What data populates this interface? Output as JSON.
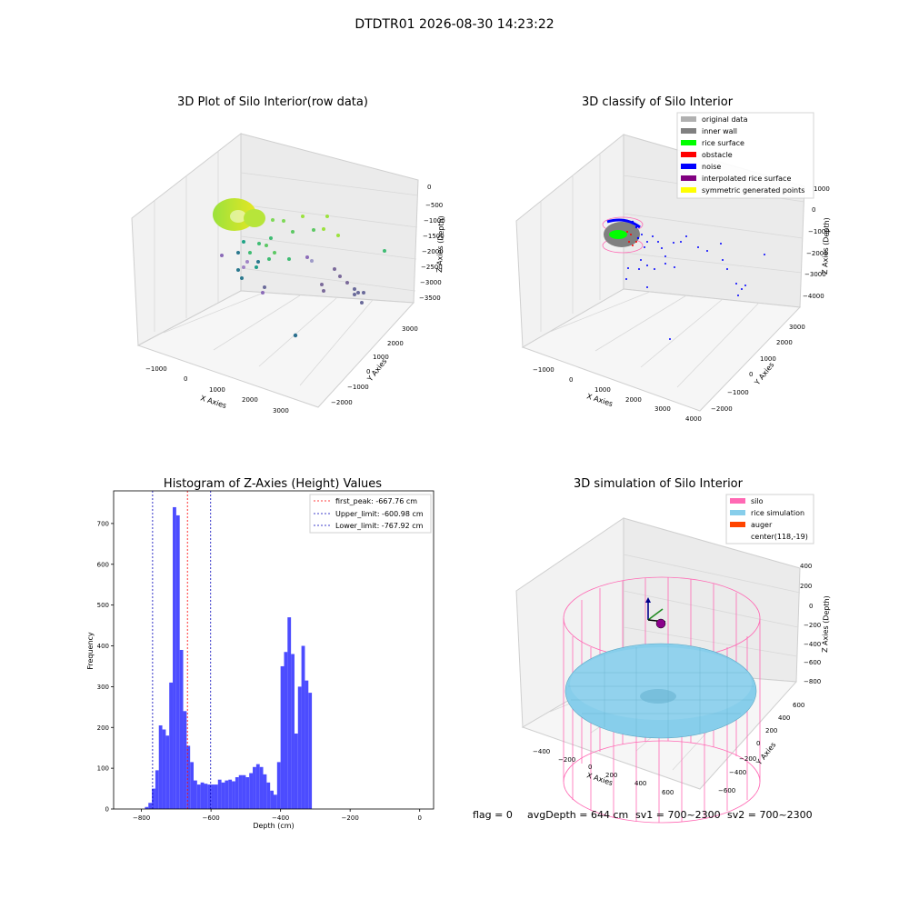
{
  "suptitle": "DTDTR01 2026-08-30 14:23:22",
  "footer": {
    "flag": "flag = 0",
    "avg": "avgDepth = 644 cm",
    "sv1": "sv1 = 700~2300",
    "sv2": "sv2 = 700~2300"
  },
  "colors": {
    "hist_bar": "#4c4cff",
    "peak_line": "#ff0000",
    "limit_line": "#0000bb",
    "silo": "#ff69b4",
    "rice_sim": "#87ceeb",
    "auger": "#ff4500",
    "wall": "#808080",
    "rice": "#00ff00",
    "obstacle": "#ff0000",
    "noise": "#0000ff",
    "interp": "#800080",
    "sym": "#ffff00",
    "orig": "#b0b0b0"
  },
  "chart_data": [
    {
      "type": "scatter",
      "title": "3D Plot of Silo Interior(row data)",
      "xlabel": "X Axies",
      "ylabel": "Y Axies",
      "zlabel": "Z Axies (Depth)",
      "xticks": [
        "−1000",
        "0",
        "1000",
        "2000",
        "3000"
      ],
      "yticks": [
        "−2000",
        "−1000",
        "0",
        "1000",
        "2000",
        "3000"
      ],
      "zticks": [
        "0",
        "−500",
        "−1000",
        "−1500",
        "−2000",
        "−2500",
        "−3000",
        "−3500"
      ]
    },
    {
      "type": "scatter",
      "title": "3D classify of Silo Interior",
      "xlabel": "X Axies",
      "ylabel": "Y Axies",
      "zlabel": "Z Axies (Depth)",
      "xticks": [
        "−1000",
        "0",
        "1000",
        "2000",
        "3000",
        "4000"
      ],
      "yticks": [
        "−2000",
        "−1000",
        "0",
        "1000",
        "2000",
        "3000"
      ],
      "zticks": [
        "1000",
        "0",
        "−1000",
        "−2000",
        "−3000",
        "−4000"
      ],
      "legend": [
        {
          "label": "original data",
          "color": "#b0b0b0"
        },
        {
          "label": "inner wall",
          "color": "#808080"
        },
        {
          "label": "rice surface",
          "color": "#00ff00"
        },
        {
          "label": "obstacle",
          "color": "#ff0000"
        },
        {
          "label": "noise",
          "color": "#0000ff"
        },
        {
          "label": "interpolated rice surface",
          "color": "#800080"
        },
        {
          "label": "symmetric generated points",
          "color": "#ffff00"
        }
      ]
    },
    {
      "type": "bar",
      "title": "Histogram of Z-Axies (Height) Values",
      "xlabel": "Depth (cm)",
      "ylabel": "Frequency",
      "xlim": [
        -880,
        40
      ],
      "ylim": [
        0,
        780
      ],
      "xticks": [
        -800,
        -600,
        -400,
        -200,
        0
      ],
      "yticks": [
        0,
        100,
        200,
        300,
        400,
        500,
        600,
        700
      ],
      "bin_width": 10,
      "bins": [
        {
          "x": -790,
          "v": 5
        },
        {
          "x": -780,
          "v": 15
        },
        {
          "x": -770,
          "v": 50
        },
        {
          "x": -760,
          "v": 95
        },
        {
          "x": -750,
          "v": 205
        },
        {
          "x": -740,
          "v": 195
        },
        {
          "x": -730,
          "v": 180
        },
        {
          "x": -720,
          "v": 310
        },
        {
          "x": -710,
          "v": 740
        },
        {
          "x": -700,
          "v": 720
        },
        {
          "x": -690,
          "v": 390
        },
        {
          "x": -680,
          "v": 240
        },
        {
          "x": -670,
          "v": 155
        },
        {
          "x": -660,
          "v": 115
        },
        {
          "x": -650,
          "v": 70
        },
        {
          "x": -640,
          "v": 60
        },
        {
          "x": -630,
          "v": 65
        },
        {
          "x": -620,
          "v": 62
        },
        {
          "x": -610,
          "v": 60
        },
        {
          "x": -600,
          "v": 60
        },
        {
          "x": -590,
          "v": 60
        },
        {
          "x": -580,
          "v": 72
        },
        {
          "x": -570,
          "v": 65
        },
        {
          "x": -560,
          "v": 70
        },
        {
          "x": -550,
          "v": 72
        },
        {
          "x": -540,
          "v": 68
        },
        {
          "x": -530,
          "v": 78
        },
        {
          "x": -520,
          "v": 83
        },
        {
          "x": -510,
          "v": 83
        },
        {
          "x": -500,
          "v": 78
        },
        {
          "x": -490,
          "v": 88
        },
        {
          "x": -480,
          "v": 103
        },
        {
          "x": -470,
          "v": 110
        },
        {
          "x": -460,
          "v": 103
        },
        {
          "x": -450,
          "v": 85
        },
        {
          "x": -440,
          "v": 65
        },
        {
          "x": -430,
          "v": 45
        },
        {
          "x": -420,
          "v": 35
        },
        {
          "x": -410,
          "v": 115
        },
        {
          "x": -400,
          "v": 350
        },
        {
          "x": -390,
          "v": 385
        },
        {
          "x": -380,
          "v": 470
        },
        {
          "x": -370,
          "v": 380
        },
        {
          "x": -360,
          "v": 185
        },
        {
          "x": -350,
          "v": 300
        },
        {
          "x": -340,
          "v": 400
        },
        {
          "x": -330,
          "v": 315
        },
        {
          "x": -320,
          "v": 285
        }
      ],
      "vlines": [
        {
          "x": -667.76,
          "label": "first_peak: -667.76 cm",
          "kind": "peak"
        },
        {
          "x": -600.98,
          "label": "Upper_limit: -600.98 cm",
          "kind": "limit"
        },
        {
          "x": -767.92,
          "label": "Lower_limit: -767.92 cm",
          "kind": "limit"
        }
      ]
    },
    {
      "type": "scatter",
      "title": "3D simulation of Silo Interior",
      "xlabel": "X Axies",
      "ylabel": "Y Axies",
      "zlabel": "Z Axies (Depth)",
      "xticks": [
        "−400",
        "−200",
        "0",
        "200",
        "400",
        "600"
      ],
      "yticks": [
        "−600",
        "−400",
        "−200",
        "0",
        "200",
        "400",
        "600"
      ],
      "zticks": [
        "400",
        "200",
        "0",
        "−200",
        "−400",
        "−600",
        "−800"
      ],
      "legend": [
        {
          "label": "silo",
          "color": "#ff69b4"
        },
        {
          "label": "rice simulation",
          "color": "#87ceeb"
        },
        {
          "label": "auger",
          "color": "#ff4500"
        },
        {
          "label": "center(118,-19)",
          "color": ""
        }
      ]
    }
  ]
}
